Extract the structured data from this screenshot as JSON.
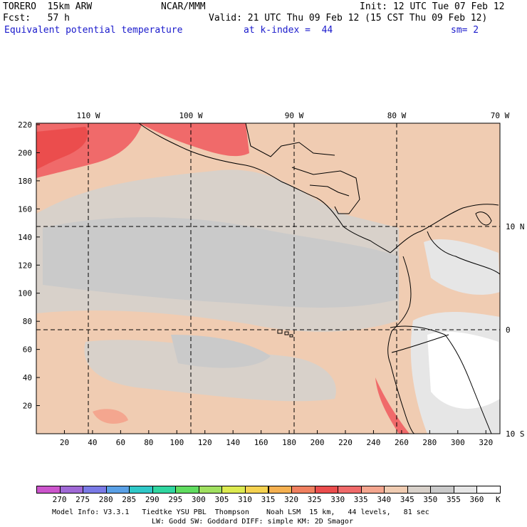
{
  "header": {
    "model": "TORERO  15km ARW",
    "center": "NCAR/MMM",
    "init": "Init: 12 UTC Tue 07 Feb 12",
    "fcst": "Fcst:   57 h",
    "valid": "Valid: 21 UTC Thu 09 Feb 12 (15 CST Thu 09 Feb 12)",
    "field": "Equivalent potential temperature",
    "level": "at k-index =  44",
    "smooth": "sm= 2"
  },
  "map": {
    "lon_labels": [
      "110 W",
      "100 W",
      "90 W",
      "80 W",
      "70 W"
    ],
    "lat_labels": [
      "10 N",
      "0",
      "10 S"
    ],
    "x_ticks": [
      "20",
      "40",
      "60",
      "80",
      "100",
      "120",
      "140",
      "160",
      "180",
      "200",
      "220",
      "240",
      "260",
      "280",
      "300",
      "320"
    ],
    "y_ticks": [
      "20",
      "40",
      "60",
      "80",
      "100",
      "120",
      "140",
      "160",
      "180",
      "200",
      "220"
    ]
  },
  "colorbar": {
    "labels": [
      "270",
      "275",
      "280",
      "285",
      "290",
      "295",
      "300",
      "305",
      "310",
      "315",
      "320",
      "325",
      "330",
      "335",
      "340",
      "345",
      "350",
      "355",
      "360"
    ],
    "unit": "K",
    "colors": [
      "#cc55cc",
      "#a069d6",
      "#7a7ae6",
      "#5aa0e6",
      "#30c8c8",
      "#30d6a0",
      "#60dc60",
      "#a0e060",
      "#dcea50",
      "#f5d250",
      "#f5b050",
      "#f08060",
      "#eb4d4d",
      "#f06a6a",
      "#f4a68f",
      "#f0ccb2",
      "#d8d1ca",
      "#cacaca",
      "#e6e6e6",
      "#ffffff"
    ]
  },
  "footer": {
    "line1": "Model Info: V3.3.1   Tiedtke YSU PBL  Thompson    Noah LSM  15 km,   44 levels,   81 sec",
    "line2": "LW: Godd SW: Goddard DIFF: simple KM: 2D Smagor"
  }
}
